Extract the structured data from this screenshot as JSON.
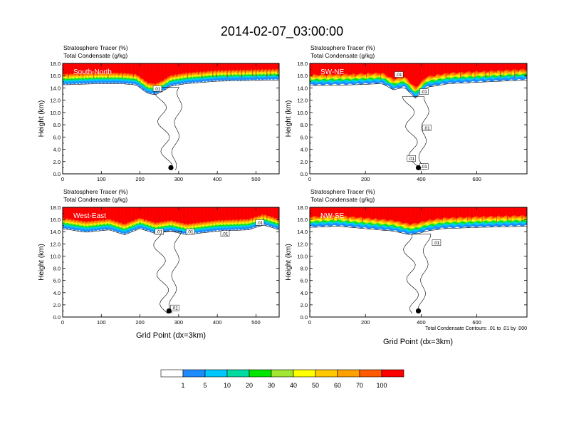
{
  "title": "2014-02-07_03:00:00",
  "panel_header_line1": "Stratosphere Tracer   (%)",
  "panel_header_line2": "Total Condensate   (g/kg)",
  "ylabel": "Height (km)",
  "xlabel": "Grid Point (dx=3km)",
  "contour_note": "Total Condensate Contours: .01 to .01 by .000",
  "contour_label": ".01",
  "colorbar": {
    "colors": [
      "#ffffff",
      "#1e8cff",
      "#00c8ff",
      "#00dca0",
      "#00e600",
      "#a0e632",
      "#ffff00",
      "#ffc800",
      "#ffa000",
      "#ff5a00",
      "#ff0000"
    ],
    "labels": [
      "1",
      "5",
      "10",
      "20",
      "30",
      "40",
      "50",
      "60",
      "70",
      "100"
    ]
  },
  "chart_data": [
    {
      "type": "heatmap",
      "name": "South-North",
      "xlim": [
        0,
        560
      ],
      "ylim": [
        0,
        18
      ],
      "xticks": [
        0,
        100,
        200,
        300,
        400,
        500
      ],
      "yticks": [
        "0.0",
        "2.0",
        "4.0",
        "6.0",
        "8.0",
        "10.0",
        "12.0",
        "14.0",
        "16.0",
        "18.0"
      ],
      "tracer_profile": {
        "x": [
          0,
          90,
          150,
          190,
          220,
          240,
          260,
          280,
          320,
          400,
          560
        ],
        "top_y": [
          14.6,
          14.8,
          14.8,
          14.6,
          13.2,
          13.0,
          13.6,
          14.4,
          14.8,
          15.2,
          15.4
        ]
      },
      "marker": {
        "x": 280,
        "y": 1.0
      },
      "contour_labels": [
        {
          "x": 245,
          "y": 13.9
        }
      ]
    },
    {
      "type": "heatmap",
      "name": "SW-NE",
      "xlim": [
        0,
        780
      ],
      "ylim": [
        0,
        18
      ],
      "xticks": [
        0,
        200,
        400,
        600
      ],
      "yticks": [
        "0.0",
        "2.0",
        "4.0",
        "6.0",
        "8.0",
        "10.0",
        "12.0",
        "14.0",
        "16.0",
        "18.0"
      ],
      "tracer_profile": {
        "x": [
          0,
          150,
          260,
          300,
          340,
          380,
          420,
          500,
          780
        ],
        "top_y": [
          14.5,
          14.6,
          14.8,
          13.8,
          14.2,
          12.4,
          14.2,
          14.8,
          15.4
        ]
      },
      "marker": {
        "x": 390,
        "y": 1.0
      },
      "contour_labels": [
        {
          "x": 320,
          "y": 16.2
        },
        {
          "x": 410,
          "y": 13.4
        },
        {
          "x": 420,
          "y": 7.5
        },
        {
          "x": 365,
          "y": 2.5
        },
        {
          "x": 410,
          "y": 1.2
        }
      ]
    },
    {
      "type": "heatmap",
      "name": "West-East",
      "xlim": [
        0,
        560
      ],
      "ylim": [
        0,
        18
      ],
      "xticks": [
        0,
        100,
        200,
        300,
        400,
        500
      ],
      "yticks": [
        "0.0",
        "2.0",
        "4.0",
        "6.0",
        "8.0",
        "10.0",
        "12.0",
        "14.0",
        "16.0",
        "18.0"
      ],
      "tracer_profile": {
        "x": [
          0,
          60,
          120,
          160,
          200,
          240,
          280,
          320,
          400,
          480,
          520,
          560
        ],
        "top_y": [
          14.6,
          14.0,
          14.4,
          13.6,
          14.6,
          13.8,
          14.2,
          13.6,
          14.2,
          14.4,
          15.2,
          14.4
        ]
      },
      "marker": {
        "x": 275,
        "y": 1.0
      },
      "contour_labels": [
        {
          "x": 250,
          "y": 14.0
        },
        {
          "x": 330,
          "y": 14.0
        },
        {
          "x": 420,
          "y": 13.7
        },
        {
          "x": 510,
          "y": 15.5
        },
        {
          "x": 290,
          "y": 1.5
        }
      ]
    },
    {
      "type": "heatmap",
      "name": "NW-SE",
      "xlim": [
        0,
        780
      ],
      "ylim": [
        0,
        18
      ],
      "xticks": [
        0,
        200,
        400,
        600
      ],
      "yticks": [
        "0.0",
        "2.0",
        "4.0",
        "6.0",
        "8.0",
        "10.0",
        "12.0",
        "14.0",
        "16.0",
        "18.0"
      ],
      "tracer_profile": {
        "x": [
          0,
          100,
          200,
          300,
          360,
          390,
          420,
          480,
          600,
          780
        ],
        "top_y": [
          14.8,
          15.0,
          14.6,
          14.2,
          13.6,
          13.8,
          14.2,
          14.6,
          14.8,
          15.0
        ]
      },
      "marker": {
        "x": 390,
        "y": 1.0
      },
      "contour_labels": [
        {
          "x": 455,
          "y": 12.2
        }
      ]
    }
  ]
}
